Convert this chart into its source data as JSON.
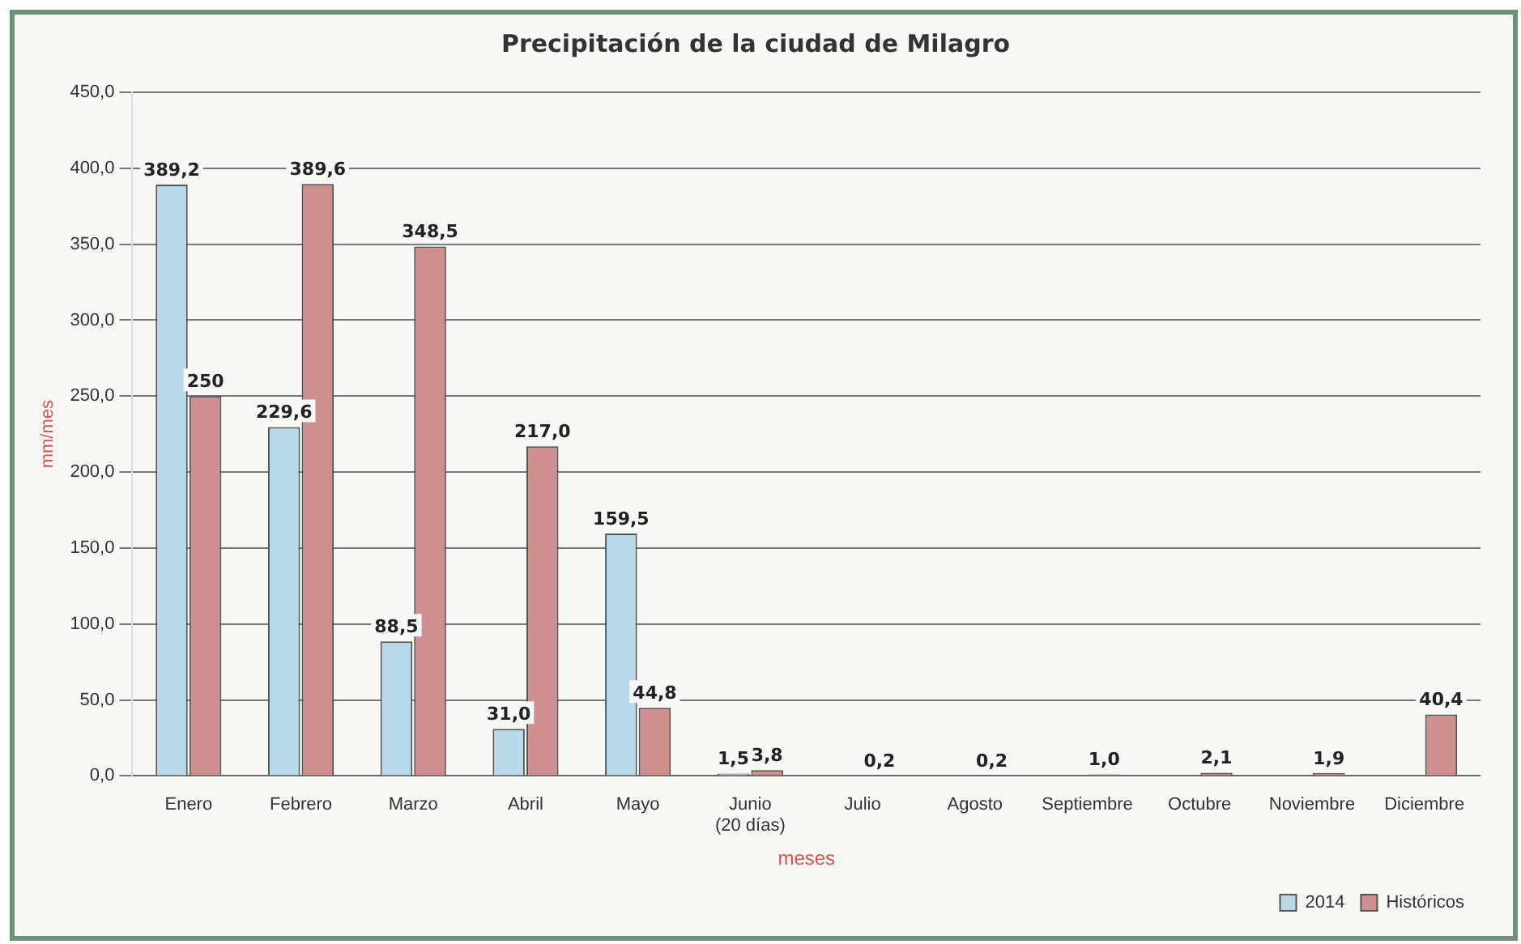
{
  "chart_data": {
    "type": "bar",
    "title": "Precipitación de la ciudad de Milagro",
    "xlabel": "meses",
    "ylabel": "mm/mes",
    "categories": [
      "Enero",
      "Febrero",
      "Marzo",
      "Abril",
      "Mayo",
      "Junio (20 días)",
      "Julio",
      "Agosto",
      "Septiembre",
      "Octubre",
      "Noviembre",
      "Diciembre"
    ],
    "series": [
      {
        "name": "2014",
        "color": "#b9d9e8",
        "values": [
          389.2,
          229.6,
          88.5,
          31.0,
          159.5,
          1.5,
          null,
          null,
          null,
          null,
          null,
          null
        ],
        "value_labels": [
          "389,2",
          "229,6",
          "88,5",
          "31,0",
          "159,5",
          "1,5",
          null,
          null,
          null,
          null,
          null,
          null
        ]
      },
      {
        "name": "Históricos",
        "color": "#cf8f8f",
        "values": [
          250,
          389.6,
          348.5,
          217.0,
          44.8,
          3.8,
          0.2,
          0.2,
          1.0,
          2.1,
          1.9,
          40.4
        ],
        "value_labels": [
          "250",
          "389,6",
          "348,5",
          "217,0",
          "44,8",
          "3,8",
          "0,2",
          "0,2",
          "1,0",
          "2,1",
          "1,9",
          "40,4"
        ]
      }
    ],
    "ylim": [
      0,
      450
    ],
    "yticks": [
      {
        "value": 0,
        "label": "0,0"
      },
      {
        "value": 50,
        "label": "50,0"
      },
      {
        "value": 100,
        "label": "100,0"
      },
      {
        "value": 150,
        "label": "150,0"
      },
      {
        "value": 200,
        "label": "200,0"
      },
      {
        "value": 250,
        "label": "250,0"
      },
      {
        "value": 300,
        "label": "300,0"
      },
      {
        "value": 350,
        "label": "350,0"
      },
      {
        "value": 400,
        "label": "400,0"
      },
      {
        "value": 450,
        "label": "450,0"
      }
    ],
    "grid": "y",
    "legend": "bottom right"
  }
}
